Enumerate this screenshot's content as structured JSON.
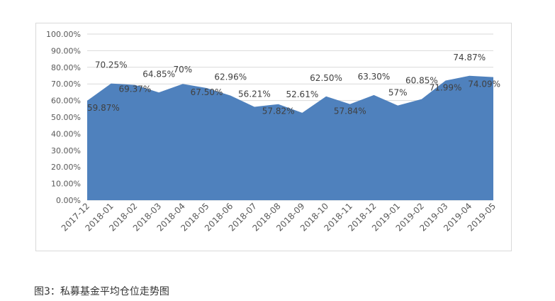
{
  "caption": "图3：私募基金平均仓位走势图",
  "colors": {
    "area_fill": "#4f81bd",
    "gridline": "#d9d9d9",
    "text": "#595959",
    "frame_border": "#d9d9d9"
  },
  "chart_data": {
    "type": "area",
    "title": "",
    "xlabel": "",
    "ylabel": "",
    "grid": true,
    "legend": "none",
    "ylim": [
      0,
      100
    ],
    "yticks": [
      "0.00%",
      "10.00%",
      "20.00%",
      "30.00%",
      "40.00%",
      "50.00%",
      "60.00%",
      "70.00%",
      "80.00%",
      "90.00%",
      "100.00%"
    ],
    "categories": [
      "2017-12",
      "2018-01",
      "2018-02",
      "2018-03",
      "2018-04",
      "2018-05",
      "2018-06",
      "2018-07",
      "2018-08",
      "2018-09",
      "2018-10",
      "2018-11",
      "2018-12",
      "2019-01",
      "2019-02",
      "2019-03",
      "2019-04",
      "2019-05"
    ],
    "series": [
      {
        "values": [
          59.87,
          70.25,
          69.37,
          64.85,
          70,
          67.5,
          62.96,
          56.21,
          57.82,
          52.61,
          62.5,
          57.84,
          63.3,
          57,
          60.85,
          71.99,
          74.87,
          74.09
        ],
        "labels": [
          "59.87%",
          "70.25%",
          "69.37%",
          "64.85%",
          "70%",
          "67.50%",
          "62.96%",
          "56.21%",
          "57.82%",
          "52.61%",
          "62.50%",
          "57.84%",
          "63.30%",
          "57%",
          "60.85%",
          "71.99%",
          "74.87%",
          "74.09%"
        ]
      }
    ]
  }
}
